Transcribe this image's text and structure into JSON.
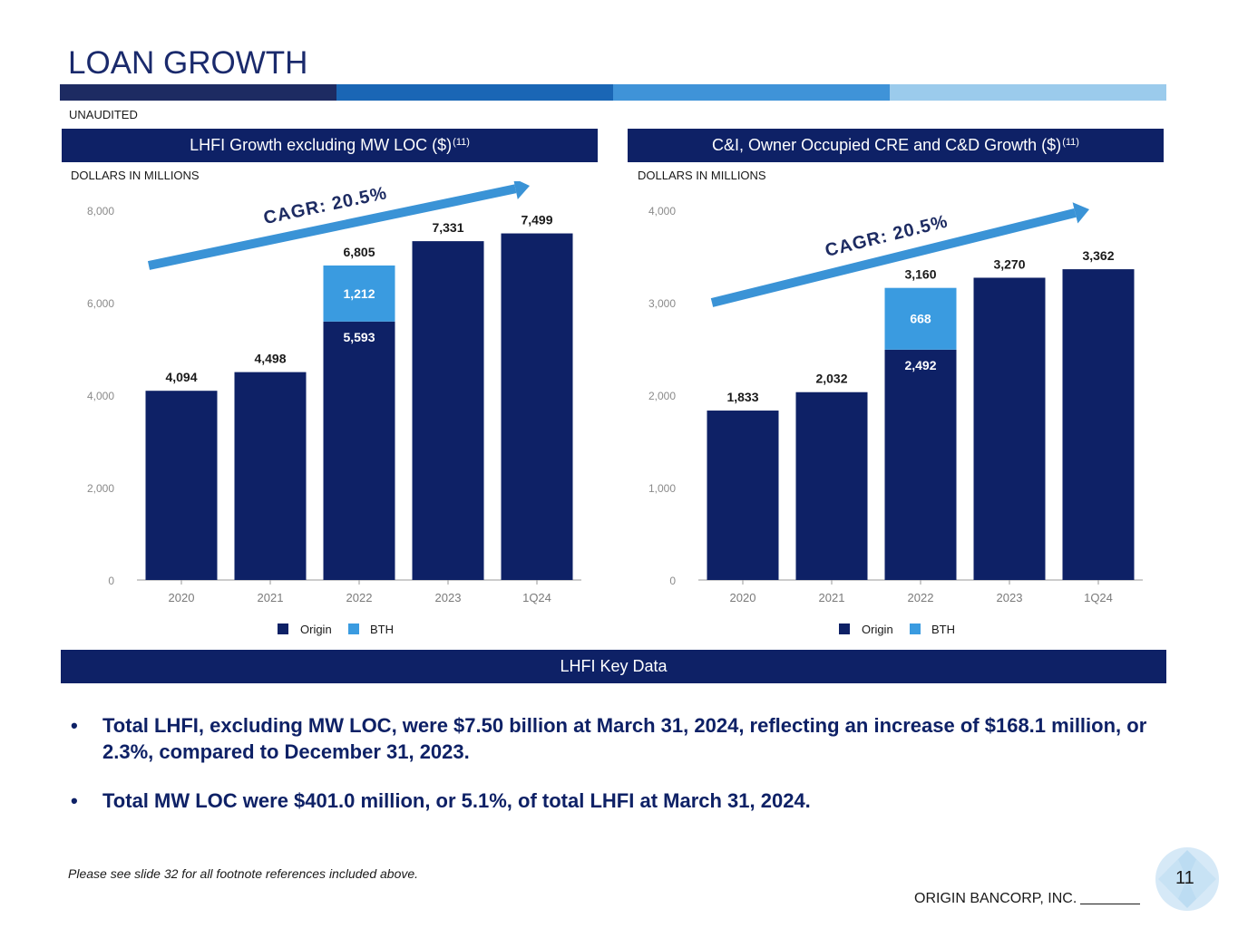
{
  "title": "LOAN GROWTH",
  "colors": {
    "navy": "#0e2166",
    "bth": "#3a9be0",
    "bar1": "#1d2b62",
    "bar2": "#1a66b5",
    "bar3": "#3f93d8",
    "bar4": "#9bcbec",
    "arrow": "#3a93d6"
  },
  "unaudited": "UNAUDITED",
  "left_panel": {
    "title": "LHFI Growth excluding MW LOC ($)",
    "sup": "(11)",
    "units": "DOLLARS IN MILLIONS",
    "cagr": "CAGR:  20.5%"
  },
  "right_panel": {
    "title": "C&I, Owner Occupied CRE and C&D Growth ($)",
    "sup": "(11)",
    "units": "DOLLARS IN MILLIONS",
    "cagr": "CAGR:  20.5%"
  },
  "chart_data": [
    {
      "type": "bar",
      "stacked": true,
      "categories": [
        "2020",
        "2021",
        "2022",
        "2023",
        "1Q24"
      ],
      "series": [
        {
          "name": "Origin",
          "values": [
            4094,
            4498,
            5593,
            7331,
            7499
          ]
        },
        {
          "name": "BTH",
          "values": [
            0,
            0,
            1212,
            0,
            0
          ]
        }
      ],
      "segment_labels": {
        "Origin": [
          "",
          "",
          "5,593",
          "",
          ""
        ],
        "BTH": [
          "",
          "",
          "1,212",
          "",
          ""
        ]
      },
      "totals": [
        "4,094",
        "4,498",
        "6,805",
        "7,331",
        "7,499"
      ],
      "ylim": [
        0,
        8000
      ],
      "yticks": [
        0,
        2000,
        4000,
        6000,
        8000
      ],
      "ytick_labels": [
        "0",
        "2,000",
        "4,000",
        "6,000",
        "8,000"
      ],
      "legend": [
        "Origin",
        "BTH"
      ]
    },
    {
      "type": "bar",
      "stacked": true,
      "categories": [
        "2020",
        "2021",
        "2022",
        "2023",
        "1Q24"
      ],
      "series": [
        {
          "name": "Origin",
          "values": [
            1833,
            2032,
            2492,
            3270,
            3362
          ]
        },
        {
          "name": "BTH",
          "values": [
            0,
            0,
            668,
            0,
            0
          ]
        }
      ],
      "segment_labels": {
        "Origin": [
          "",
          "",
          "2,492",
          "",
          ""
        ],
        "BTH": [
          "",
          "",
          "668",
          "",
          ""
        ]
      },
      "totals": [
        "1,833",
        "2,032",
        "3,160",
        "3,270",
        "3,362"
      ],
      "ylim": [
        0,
        4000
      ],
      "yticks": [
        0,
        1000,
        2000,
        3000,
        4000
      ],
      "ytick_labels": [
        "0",
        "1,000",
        "2,000",
        "3,000",
        "4,000"
      ],
      "legend": [
        "Origin",
        "BTH"
      ]
    }
  ],
  "key_data_title": "LHFI Key Data",
  "bullets": [
    "Total LHFI, excluding MW LOC, were $7.50 billion at March 31, 2024, reflecting an increase of $168.1 million, or 2.3%, compared to December 31, 2023.",
    "Total MW LOC were $401.0 million, or 5.1%, of total LHFI at March 31, 2024."
  ],
  "bullet_symbol": "•",
  "footnote": "Please see slide 32 for all footnote references included above.",
  "company": "ORIGIN BANCORP, INC.",
  "page_number": "11"
}
